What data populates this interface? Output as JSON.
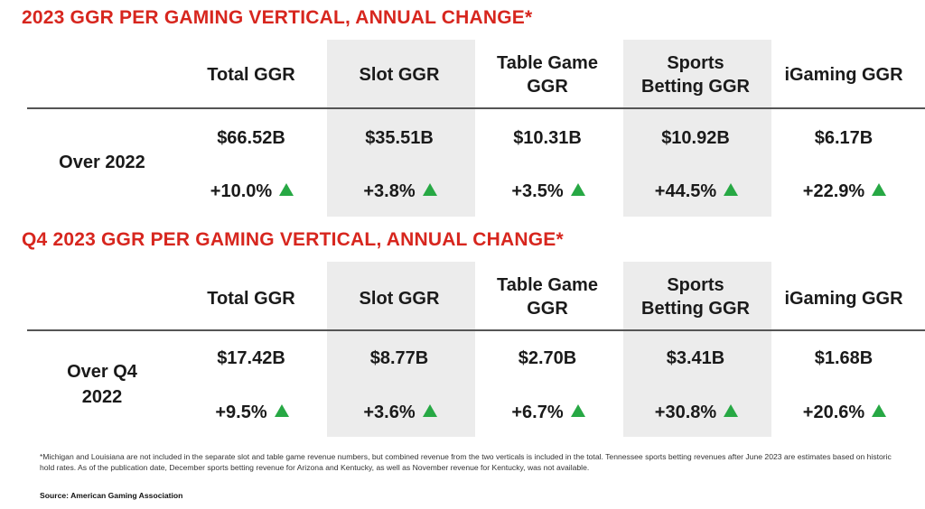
{
  "columns": [
    "Total GGR",
    "Slot GGR",
    "Table Game\nGGR",
    "Sports\nBetting GGR",
    "iGaming GGR"
  ],
  "section1": {
    "title": "2023 GGR PER GAMING VERTICAL, ANNUAL CHANGE*",
    "row_label": "Over 2022",
    "values": [
      "$66.52B",
      "$35.51B",
      "$10.31B",
      "$10.92B",
      "$6.17B"
    ],
    "changes": [
      "+10.0%",
      "+3.8%",
      "+3.5%",
      "+44.5%",
      "+22.9%"
    ]
  },
  "section2": {
    "title": "Q4 2023 GGR PER GAMING VERTICAL, ANNUAL CHANGE*",
    "row_label": "Over Q4\n2022",
    "values": [
      "$17.42B",
      "$8.77B",
      "$2.70B",
      "$3.41B",
      "$1.68B"
    ],
    "changes": [
      "+9.5%",
      "+3.6%",
      "+6.7%",
      "+30.8%",
      "+20.6%"
    ]
  },
  "footnote": "*Michigan and Louisiana are not included in the separate slot and table game revenue numbers, but combined revenue from the two verticals is included in the total. Tennessee sports betting revenues after June 2023 are estimates based on historic hold rates. As of the publication date, December sports betting revenue for Arizona and Kentucky, as well as November revenue for Kentucky, was not available.",
  "source": "Source: American Gaming Association",
  "colors": {
    "title": "#d7261e",
    "shade": "#ececec",
    "up_arrow": "#27a844"
  },
  "icons": [
    "up-triangle-icon"
  ]
}
